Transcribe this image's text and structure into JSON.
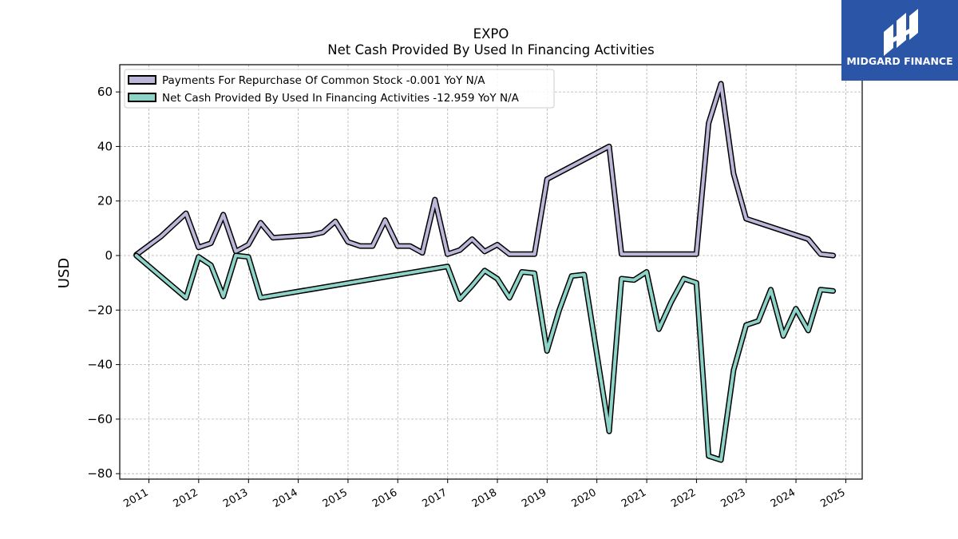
{
  "logo": {
    "text": "MIDGARD FINANCE",
    "background": "#2b56a8"
  },
  "chart_data": {
    "type": "line",
    "title": "EXPO",
    "subtitle": "Net Cash Provided By Used In Financing Activities",
    "ylabel": "USD",
    "xlabel": "",
    "ylim": [
      -82,
      70
    ],
    "xlim": [
      "2010-06-01",
      "2025-05-01"
    ],
    "yticks": [
      -80,
      -60,
      -40,
      -20,
      0,
      20,
      40,
      60
    ],
    "xticks": [
      "2011",
      "2012",
      "2013",
      "2014",
      "2015",
      "2016",
      "2017",
      "2018",
      "2019",
      "2020",
      "2021",
      "2022",
      "2023",
      "2024",
      "2025"
    ],
    "grid": true,
    "legend_position": "top-left",
    "series": [
      {
        "name": "Payments For Repurchase Of Common Stock  -0.001 YoY N/A",
        "color": "#bcb6d8",
        "points": [
          [
            "2010-09-30",
            0.3
          ],
          [
            "2011-03-31",
            7
          ],
          [
            "2011-09-30",
            15.5
          ],
          [
            "2011-12-31",
            3.0
          ],
          [
            "2012-03-31",
            4.5
          ],
          [
            "2012-06-30",
            15.0
          ],
          [
            "2012-09-30",
            1.5
          ],
          [
            "2012-12-31",
            4.0
          ],
          [
            "2013-03-31",
            12.0
          ],
          [
            "2013-06-30",
            6.5
          ],
          [
            "2014-03-31",
            7.5
          ],
          [
            "2014-06-30",
            8.5
          ],
          [
            "2014-09-30",
            12.5
          ],
          [
            "2014-12-31",
            5.0
          ],
          [
            "2015-03-31",
            3.5
          ],
          [
            "2015-06-30",
            3.5
          ],
          [
            "2015-09-30",
            13.0
          ],
          [
            "2015-12-31",
            3.5
          ],
          [
            "2016-03-31",
            3.5
          ],
          [
            "2016-06-30",
            1.0
          ],
          [
            "2016-09-30",
            20.5
          ],
          [
            "2016-12-31",
            0.5
          ],
          [
            "2017-03-31",
            2.0
          ],
          [
            "2017-06-30",
            6.0
          ],
          [
            "2017-09-30",
            1.5
          ],
          [
            "2017-12-31",
            4.0
          ],
          [
            "2018-03-31",
            0.5
          ],
          [
            "2018-06-30",
            0.5
          ],
          [
            "2018-09-30",
            0.5
          ],
          [
            "2018-12-31",
            28.0
          ],
          [
            "2020-03-31",
            40.0
          ],
          [
            "2020-06-30",
            0.5
          ],
          [
            "2021-12-31",
            0.5
          ],
          [
            "2022-03-31",
            48.5
          ],
          [
            "2022-06-30",
            63.0
          ],
          [
            "2022-09-30",
            30.0
          ],
          [
            "2022-12-31",
            13.5
          ],
          [
            "2024-03-31",
            6.0
          ],
          [
            "2024-06-30",
            0.5
          ],
          [
            "2024-09-30",
            0.0
          ]
        ]
      },
      {
        "name": "Net Cash Provided By Used In Financing Activities  -12.959 YoY N/A",
        "color": "#8dd3c7",
        "points": [
          [
            "2010-09-30",
            0.0
          ],
          [
            "2011-09-30",
            -15.5
          ],
          [
            "2011-12-31",
            -0.5
          ],
          [
            "2012-03-31",
            -3.5
          ],
          [
            "2012-06-30",
            -15.0
          ],
          [
            "2012-09-30",
            0.0
          ],
          [
            "2012-12-31",
            -0.5
          ],
          [
            "2013-03-31",
            -15.5
          ],
          [
            "2016-12-31",
            -4.0
          ],
          [
            "2017-03-31",
            -16.0
          ],
          [
            "2017-06-30",
            -11.0
          ],
          [
            "2017-09-30",
            -5.5
          ],
          [
            "2017-12-31",
            -8.5
          ],
          [
            "2018-03-31",
            -15.5
          ],
          [
            "2018-06-30",
            -6.0
          ],
          [
            "2018-09-30",
            -6.5
          ],
          [
            "2018-12-31",
            -35.0
          ],
          [
            "2019-03-31",
            -20.0
          ],
          [
            "2019-06-30",
            -7.5
          ],
          [
            "2019-09-30",
            -7.0
          ],
          [
            "2020-03-31",
            -64.5
          ],
          [
            "2020-06-30",
            -8.5
          ],
          [
            "2020-09-30",
            -9.0
          ],
          [
            "2020-12-31",
            -6.0
          ],
          [
            "2021-03-31",
            -27.0
          ],
          [
            "2021-06-30",
            -17.0
          ],
          [
            "2021-09-30",
            -8.5
          ],
          [
            "2021-12-31",
            -10.0
          ],
          [
            "2022-03-31",
            -73.5
          ],
          [
            "2022-06-30",
            -75.0
          ],
          [
            "2022-09-30",
            -42.0
          ],
          [
            "2022-12-31",
            -25.5
          ],
          [
            "2023-03-31",
            -24.0
          ],
          [
            "2023-06-30",
            -12.5
          ],
          [
            "2023-09-30",
            -29.5
          ],
          [
            "2023-12-31",
            -19.5
          ],
          [
            "2024-03-31",
            -27.5
          ],
          [
            "2024-06-30",
            -12.5
          ],
          [
            "2024-09-30",
            -13.0
          ]
        ]
      }
    ]
  }
}
